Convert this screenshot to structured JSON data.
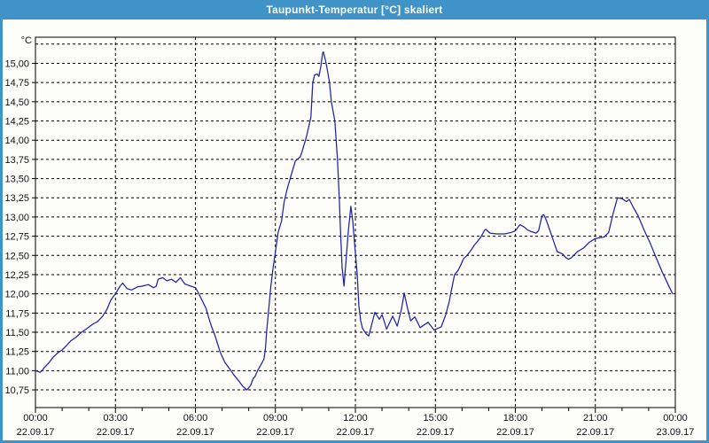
{
  "window": {
    "title": "Taupunkt-Temperatur [°C] skaliert"
  },
  "colors": {
    "titlebar": "#3f93c6",
    "window_border": "#3f93c6",
    "content_background": "#fdfdfa",
    "grid": "#000000",
    "axis": "#000000",
    "label_text": "#101018",
    "title_text": "#ffffff",
    "line": "#2121ac"
  },
  "chart_data": {
    "type": "line",
    "title": "Taupunkt-Temperatur [°C] skaliert",
    "y_unit_label": "°C",
    "ylabel": "",
    "xlabel": "",
    "grid": "dashed",
    "legend": "none",
    "x_range_hours": [
      0,
      24
    ],
    "y_axis_range": [
      10.52,
      15.34
    ],
    "y_grid": {
      "min": 10.75,
      "max": 15.25,
      "step": 0.25
    },
    "y_labeled_max": 15.0,
    "decimal_separator": ",",
    "x_minor_tick_hours": 1,
    "x_ticks": [
      {
        "hour": 0,
        "time": "00:00",
        "date": "22.09.17"
      },
      {
        "hour": 3,
        "time": "03:00",
        "date": "22.09.17"
      },
      {
        "hour": 6,
        "time": "06:00",
        "date": "22.09.17"
      },
      {
        "hour": 9,
        "time": "09:00",
        "date": "22.09.17"
      },
      {
        "hour": 12,
        "time": "12:00",
        "date": "22.09.17"
      },
      {
        "hour": 15,
        "time": "15:00",
        "date": "22.09.17"
      },
      {
        "hour": 18,
        "time": "18:00",
        "date": "22.09.17"
      },
      {
        "hour": 21,
        "time": "21:00",
        "date": "22.09.17"
      },
      {
        "hour": 24,
        "time": "00:00",
        "date": "23.09.17"
      }
    ],
    "series": [
      {
        "name": "Taupunkt-Temperatur",
        "color": "#2121ac",
        "points": [
          [
            0,
            11.0
          ],
          [
            0.08,
            10.99
          ],
          [
            0.17,
            10.98
          ],
          [
            0.25,
            11.0
          ],
          [
            0.33,
            11.04
          ],
          [
            0.5,
            11.1
          ],
          [
            0.67,
            11.18
          ],
          [
            0.83,
            11.23
          ],
          [
            1.0,
            11.27
          ],
          [
            1.17,
            11.33
          ],
          [
            1.33,
            11.39
          ],
          [
            1.5,
            11.43
          ],
          [
            1.73,
            11.5
          ],
          [
            1.93,
            11.55
          ],
          [
            2.17,
            11.61
          ],
          [
            2.33,
            11.64
          ],
          [
            2.5,
            11.7
          ],
          [
            2.67,
            11.79
          ],
          [
            2.77,
            11.87
          ],
          [
            2.83,
            11.92
          ],
          [
            2.93,
            11.97
          ],
          [
            3.0,
            12.0
          ],
          [
            3.17,
            12.1
          ],
          [
            3.27,
            12.14
          ],
          [
            3.43,
            12.07
          ],
          [
            3.6,
            12.05
          ],
          [
            3.83,
            12.09
          ],
          [
            4.0,
            12.1
          ],
          [
            4.23,
            12.12
          ],
          [
            4.43,
            12.08
          ],
          [
            4.53,
            12.1
          ],
          [
            4.6,
            12.19
          ],
          [
            4.77,
            12.21
          ],
          [
            4.93,
            12.17
          ],
          [
            5.1,
            12.19
          ],
          [
            5.27,
            12.15
          ],
          [
            5.43,
            12.21
          ],
          [
            5.6,
            12.13
          ],
          [
            5.83,
            12.1
          ],
          [
            6.0,
            12.08
          ],
          [
            6.1,
            12.02
          ],
          [
            6.23,
            11.93
          ],
          [
            6.4,
            11.81
          ],
          [
            6.5,
            11.69
          ],
          [
            6.6,
            11.58
          ],
          [
            6.73,
            11.46
          ],
          [
            6.83,
            11.35
          ],
          [
            6.93,
            11.24
          ],
          [
            7.1,
            11.11
          ],
          [
            7.27,
            11.03
          ],
          [
            7.43,
            10.95
          ],
          [
            7.6,
            10.88
          ],
          [
            7.77,
            10.8
          ],
          [
            7.93,
            10.75
          ],
          [
            8.07,
            10.81
          ],
          [
            8.17,
            10.9
          ],
          [
            8.23,
            10.92
          ],
          [
            8.33,
            11.0
          ],
          [
            8.43,
            11.06
          ],
          [
            8.57,
            11.15
          ],
          [
            8.63,
            11.3
          ],
          [
            8.67,
            11.5
          ],
          [
            8.75,
            11.8
          ],
          [
            8.83,
            12.1
          ],
          [
            8.92,
            12.35
          ],
          [
            9.0,
            12.55
          ],
          [
            9.1,
            12.8
          ],
          [
            9.23,
            12.95
          ],
          [
            9.33,
            13.2
          ],
          [
            9.43,
            13.35
          ],
          [
            9.57,
            13.52
          ],
          [
            9.75,
            13.73
          ],
          [
            9.93,
            13.78
          ],
          [
            10.0,
            13.85
          ],
          [
            10.17,
            14.05
          ],
          [
            10.33,
            14.3
          ],
          [
            10.4,
            14.75
          ],
          [
            10.47,
            14.85
          ],
          [
            10.57,
            14.86
          ],
          [
            10.63,
            14.83
          ],
          [
            10.7,
            14.95
          ],
          [
            10.77,
            15.13
          ],
          [
            10.8,
            15.15
          ],
          [
            10.87,
            15.05
          ],
          [
            10.93,
            14.95
          ],
          [
            11.03,
            14.75
          ],
          [
            11.1,
            14.5
          ],
          [
            11.23,
            14.25
          ],
          [
            11.3,
            13.9
          ],
          [
            11.33,
            13.75
          ],
          [
            11.4,
            13.2
          ],
          [
            11.43,
            12.9
          ],
          [
            11.5,
            12.35
          ],
          [
            11.57,
            12.1
          ],
          [
            11.63,
            12.35
          ],
          [
            11.73,
            12.8
          ],
          [
            11.83,
            13.14
          ],
          [
            11.9,
            12.95
          ],
          [
            12.0,
            12.53
          ],
          [
            12.07,
            12.25
          ],
          [
            12.13,
            11.85
          ],
          [
            12.2,
            11.65
          ],
          [
            12.27,
            11.55
          ],
          [
            12.4,
            11.48
          ],
          [
            12.5,
            11.45
          ],
          [
            12.73,
            11.76
          ],
          [
            12.9,
            11.67
          ],
          [
            13.0,
            11.73
          ],
          [
            13.17,
            11.54
          ],
          [
            13.4,
            11.71
          ],
          [
            13.57,
            11.58
          ],
          [
            13.73,
            11.8
          ],
          [
            13.83,
            12.01
          ],
          [
            13.93,
            11.85
          ],
          [
            14.07,
            11.65
          ],
          [
            14.23,
            11.7
          ],
          [
            14.43,
            11.56
          ],
          [
            14.6,
            11.6
          ],
          [
            14.73,
            11.63
          ],
          [
            14.95,
            11.53
          ],
          [
            15.22,
            11.57
          ],
          [
            15.39,
            11.73
          ],
          [
            15.52,
            11.9
          ],
          [
            15.62,
            12.08
          ],
          [
            15.72,
            12.25
          ],
          [
            15.86,
            12.31
          ],
          [
            15.96,
            12.38
          ],
          [
            16.06,
            12.46
          ],
          [
            16.19,
            12.5
          ],
          [
            16.36,
            12.58
          ],
          [
            16.45,
            12.63
          ],
          [
            16.55,
            12.67
          ],
          [
            16.69,
            12.73
          ],
          [
            16.85,
            12.83
          ],
          [
            16.89,
            12.84
          ],
          [
            17.05,
            12.79
          ],
          [
            17.3,
            12.78
          ],
          [
            17.6,
            12.78
          ],
          [
            17.85,
            12.8
          ],
          [
            18.0,
            12.82
          ],
          [
            18.17,
            12.9
          ],
          [
            18.33,
            12.87
          ],
          [
            18.47,
            12.83
          ],
          [
            18.6,
            12.81
          ],
          [
            18.77,
            12.79
          ],
          [
            18.87,
            12.82
          ],
          [
            19.0,
            13.02
          ],
          [
            19.07,
            13.03
          ],
          [
            19.17,
            12.95
          ],
          [
            19.33,
            12.79
          ],
          [
            19.57,
            12.55
          ],
          [
            19.77,
            12.52
          ],
          [
            19.9,
            12.47
          ],
          [
            20.0,
            12.45
          ],
          [
            20.1,
            12.47
          ],
          [
            20.33,
            12.55
          ],
          [
            20.57,
            12.6
          ],
          [
            20.77,
            12.67
          ],
          [
            21.0,
            12.72
          ],
          [
            21.17,
            12.73
          ],
          [
            21.33,
            12.74
          ],
          [
            21.5,
            12.8
          ],
          [
            21.67,
            13.05
          ],
          [
            21.83,
            13.25
          ],
          [
            22.0,
            13.24
          ],
          [
            22.17,
            13.2
          ],
          [
            22.27,
            13.23
          ],
          [
            22.43,
            13.12
          ],
          [
            22.6,
            13.02
          ],
          [
            22.83,
            12.83
          ],
          [
            23.07,
            12.65
          ],
          [
            23.27,
            12.48
          ],
          [
            23.5,
            12.29
          ],
          [
            23.73,
            12.12
          ],
          [
            23.9,
            12.0
          ]
        ]
      }
    ]
  }
}
